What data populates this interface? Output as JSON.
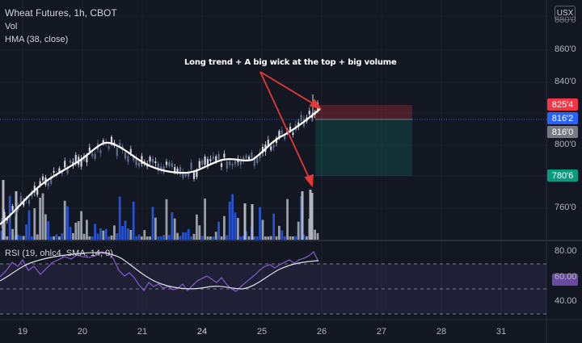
{
  "header": {
    "title": "Wheat Futures, 1h, CBOT",
    "vol_label": "Vol",
    "hma_label": "HMA (38, close)",
    "currency": "USX"
  },
  "annotation": "Long trend + A big wick at the top + big volume",
  "rsi": {
    "label": "RSI (19, ohlc4, SMA, 14, 9)",
    "ticks": [
      "80.00",
      "60.00",
      "40.00"
    ]
  },
  "price_axis": {
    "ticks": [
      "860'0",
      "840'0",
      "800'0",
      "760'0"
    ],
    "top_tick_partial": "880'0"
  },
  "price_badges": [
    {
      "label": "825'4",
      "color": "#f23645"
    },
    {
      "label": "816'2",
      "color": "#2962ff"
    },
    {
      "label": "816'0",
      "color": "#787b86"
    },
    {
      "label": "780'6",
      "color": "#089981"
    }
  ],
  "time_axis": [
    "19",
    "20",
    "21",
    "24",
    "25",
    "26",
    "27",
    "28",
    "31"
  ],
  "colors": {
    "background": "#131722",
    "hma": "#ffffff",
    "volume_up": "#b2b5be",
    "volume_down": "#2962ff",
    "stop_zone": "#f23645",
    "target_zone": "#089981",
    "arrow": "#e53935",
    "rsi_band": "#7e57c2"
  },
  "chart_data": {
    "type": "candlestick",
    "hma_y": [
      767,
      771,
      776,
      782,
      789,
      795,
      800,
      803,
      805,
      805,
      803,
      800,
      797,
      795,
      793,
      793,
      794,
      797,
      801,
      806,
      811,
      816,
      820,
      824
    ],
    "price_range": [
      748,
      884
    ],
    "rsi_range": [
      20,
      100
    ]
  }
}
